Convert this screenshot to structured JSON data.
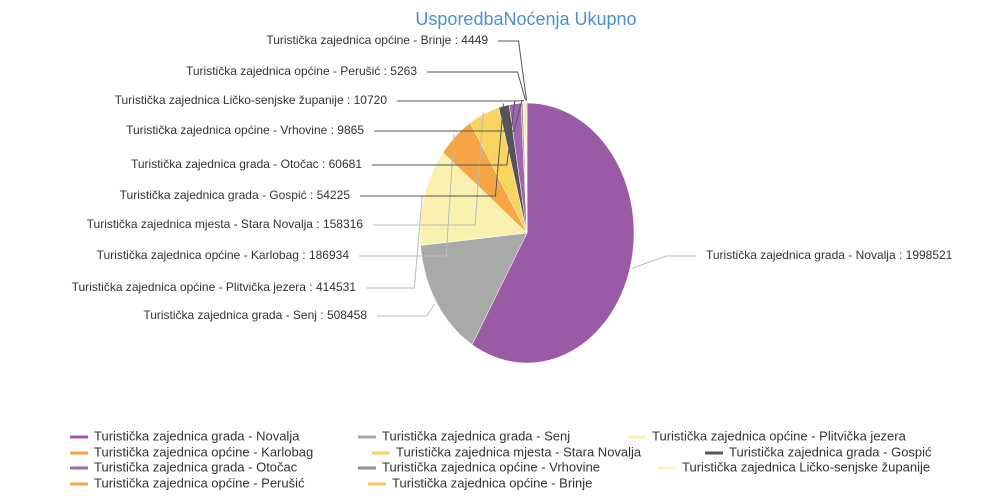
{
  "chart_data": {
    "type": "pie",
    "title": "UsporedbaNoćenja Ukupno",
    "categories": [
      "Turistička zajednica grada - Novalja",
      "Turistička zajednica grada - Senj",
      "Turistička zajednica općine - Plitvička jezera",
      "Turistička zajednica općine - Karlobag",
      "Turistička zajednica mjesta - Stara Novalja",
      "Turistička zajednica grada - Gospić",
      "Turistička zajednica grada - Otočac",
      "Turistička zajednica općine - Vrhovine",
      "Turistička zajednica Ličko-senjske županije",
      "Turistička zajednica općine - Perušić",
      "Turistička zajednica općine - Brinje"
    ],
    "values": [
      1998521,
      508458,
      414531,
      186934,
      158316,
      54225,
      60681,
      9865,
      10720,
      5263,
      4449
    ],
    "labels": [
      "Turistička zajednica grada - Novalja : 1998521",
      "Turistička zajednica grada - Senj : 508458",
      "Turistička zajednica općine - Plitvička jezera : 414531",
      "Turistička zajednica općine - Karlobag : 186934",
      "Turistička zajednica mjesta - Stara Novalja : 158316",
      "Turistička zajednica grada - Gospić : 54225",
      "Turistička zajednica grada - Otočac : 60681",
      "Turistička zajednica općine - Vrhovine : 9865",
      "Turistička zajednica Ličko-senjske županije : 10720",
      "Turistička zajednica općine - Perušić : 5263",
      "Turistička zajednica općine - Brinje : 4449"
    ],
    "colors": [
      "#9b5aa6",
      "#a9a9a9",
      "#f9f1ad",
      "#f5a544",
      "#f8d35e",
      "#555555",
      "#a066b0",
      "#8f8f8f",
      "#fbf4c0",
      "#f5a544",
      "#f7c26a"
    ],
    "legend": "bottom"
  }
}
